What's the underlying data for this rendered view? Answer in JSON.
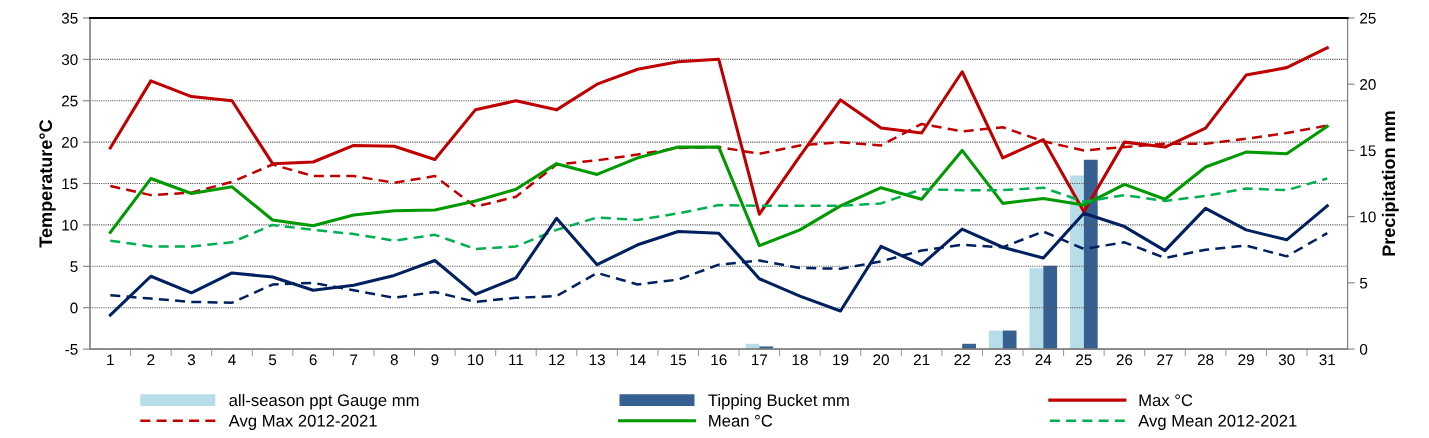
{
  "chart_data": {
    "type": "line",
    "ylabel": "Temperature°C",
    "y2label": "Precipitation mm",
    "categories": [
      "1",
      "2",
      "3",
      "4",
      "5",
      "6",
      "7",
      "8",
      "9",
      "10",
      "11",
      "12",
      "13",
      "14",
      "15",
      "16",
      "17",
      "18",
      "19",
      "20",
      "21",
      "22",
      "23",
      "24",
      "25",
      "26",
      "27",
      "28",
      "29",
      "30",
      "31"
    ],
    "ylim": [
      -5,
      35
    ],
    "yticks": [
      -5,
      0,
      5,
      10,
      15,
      20,
      25,
      30,
      35
    ],
    "y2lim": [
      0,
      25
    ],
    "y2ticks": [
      0,
      5,
      10,
      15,
      20,
      25
    ],
    "grid": "y",
    "legend": "bottom",
    "series": [
      {
        "name": "all-season ppt Gauge mm",
        "type": "bar",
        "axis": "y2",
        "color": "#b7dde8",
        "values": [
          0,
          0,
          0,
          0,
          0,
          0,
          0,
          0,
          0,
          0,
          0,
          0,
          0,
          0,
          0,
          0,
          0.4,
          0,
          0,
          0,
          0,
          null,
          1.4,
          6.1,
          13.1,
          0,
          0,
          0,
          0,
          0,
          0
        ]
      },
      {
        "name": "Tipping Bucket mm",
        "type": "bar",
        "axis": "y2",
        "color": "#376092",
        "values": [
          0,
          0,
          0,
          0,
          0,
          0,
          0,
          0,
          0,
          0,
          0,
          0,
          0,
          0,
          0,
          0,
          0.2,
          0,
          0,
          0,
          0,
          0.4,
          1.4,
          6.3,
          14.3,
          0,
          0,
          0,
          0,
          0,
          0
        ]
      },
      {
        "name": "Max °C",
        "color": "#c00000",
        "line_style": "solid",
        "values": [
          19.3,
          27.4,
          25.5,
          25,
          17.4,
          17.6,
          19.6,
          19.5,
          17.9,
          23.9,
          25,
          23.9,
          27,
          28.8,
          29.7,
          30,
          11.3,
          18.3,
          25.1,
          21.7,
          21.1,
          28.5,
          18.1,
          20.3,
          11.6,
          20,
          19.4,
          21.7,
          28.1,
          29,
          31.4
        ]
      },
      {
        "name": "Avg Max 2012-2021",
        "color": "#c00000",
        "line_style": "dashed",
        "values": [
          14.7,
          13.6,
          13.9,
          15.2,
          17.3,
          15.9,
          15.9,
          15.1,
          15.9,
          12.2,
          13.4,
          17.3,
          17.8,
          18.5,
          19.3,
          19.4,
          18.6,
          19.6,
          20,
          19.6,
          22.2,
          21.3,
          21.8,
          20.1,
          19,
          19.4,
          19.8,
          19.8,
          20.4,
          21.1,
          22
        ]
      },
      {
        "name": "Mean °C",
        "color": "#009900",
        "line_style": "solid",
        "values": [
          9.1,
          15.6,
          13.8,
          14.6,
          10.6,
          9.9,
          11.2,
          11.7,
          11.8,
          12.9,
          14.3,
          17.4,
          16.1,
          18.1,
          19.4,
          19.4,
          7.5,
          9.4,
          12.3,
          14.5,
          13.1,
          19,
          12.6,
          13.2,
          12.4,
          14.9,
          13.1,
          17,
          18.8,
          18.6,
          21.9
        ]
      },
      {
        "name": "Avg Mean 2012-2021",
        "color": "#00b050",
        "line_style": "dashed",
        "values": [
          8.1,
          7.4,
          7.4,
          7.9,
          10,
          9.4,
          8.9,
          8.1,
          8.8,
          7.1,
          7.4,
          9.4,
          10.9,
          10.6,
          11.4,
          12.4,
          12.3,
          12.3,
          12.3,
          12.6,
          14.3,
          14.2,
          14.2,
          14.5,
          12.8,
          13.6,
          12.9,
          13.5,
          14.4,
          14.2,
          15.6
        ]
      },
      {
        "color": "#002060",
        "line_style": "solid",
        "values": [
          -0.9,
          3.8,
          1.8,
          4.2,
          3.7,
          2.1,
          2.7,
          3.9,
          5.7,
          1.6,
          3.6,
          10.8,
          5.2,
          7.6,
          9.2,
          9,
          3.5,
          1.4,
          -0.4,
          7.4,
          5.2,
          9.5,
          7.3,
          6,
          11.4,
          9.8,
          6.9,
          12,
          9.4,
          8.2,
          12.3
        ]
      },
      {
        "color": "#002060",
        "line_style": "dashed",
        "values": [
          1.5,
          1.1,
          0.7,
          0.6,
          2.8,
          3,
          2.1,
          1.2,
          1.9,
          0.7,
          1.2,
          1.4,
          4.2,
          2.8,
          3.4,
          5.2,
          5.7,
          4.8,
          4.7,
          5.6,
          6.9,
          7.6,
          7.3,
          9.2,
          7.1,
          7.9,
          6,
          7,
          7.5,
          6.2,
          9
        ]
      }
    ]
  }
}
